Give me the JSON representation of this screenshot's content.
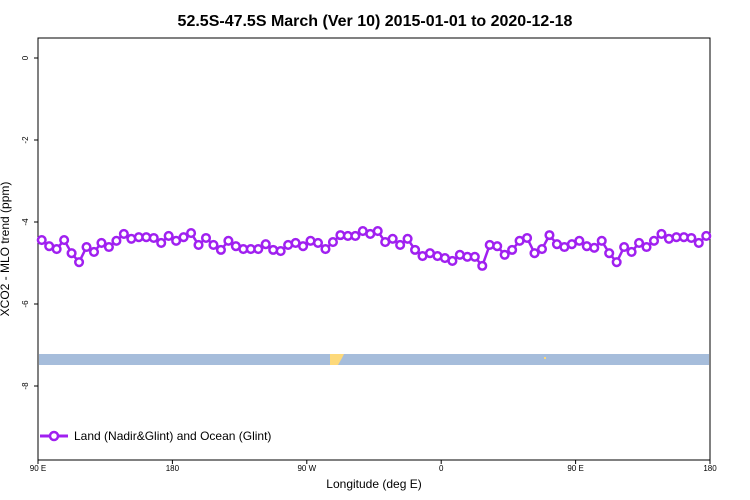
{
  "chart_data": {
    "type": "line",
    "title": "52.5S-47.5S March (Ver 10)   2015-01-01 to 2020-12-18",
    "xlabel": "Longitude (deg E)",
    "ylabel": "XCO2 - MLO trend (ppm)",
    "xlim": [
      90,
      540
    ],
    "ylim": [
      -9.8,
      0.5
    ],
    "x_ticks": [
      {
        "value": 90,
        "label": "90 E"
      },
      {
        "value": 180,
        "label": "180"
      },
      {
        "value": 270,
        "label": "90 W"
      },
      {
        "value": 360,
        "label": "0"
      },
      {
        "value": 450,
        "label": "90 E"
      },
      {
        "value": 540,
        "label": "180"
      }
    ],
    "y_ticks": [
      {
        "value": 0,
        "label": "0"
      },
      {
        "value": -2,
        "label": "-2"
      },
      {
        "value": -4,
        "label": "-4"
      },
      {
        "value": -6,
        "label": "-6"
      },
      {
        "value": -8,
        "label": "-8"
      }
    ],
    "grid": false,
    "legend_position": "bottom-left",
    "series": [
      {
        "name": "Land (Nadir&Glint) and Ocean (Glint)",
        "color": "#a020f0",
        "x_start": 92.5,
        "x_step": 5,
        "values": [
          -4.44,
          -4.59,
          -4.66,
          -4.44,
          -4.76,
          -4.98,
          -4.61,
          -4.73,
          -4.51,
          -4.61,
          -4.46,
          -4.29,
          -4.41,
          -4.37,
          -4.37,
          -4.39,
          -4.51,
          -4.34,
          -4.46,
          -4.37,
          -4.27,
          -4.56,
          -4.39,
          -4.56,
          -4.68,
          -4.46,
          -4.59,
          -4.66,
          -4.66,
          -4.66,
          -4.54,
          -4.68,
          -4.71,
          -4.56,
          -4.51,
          -4.59,
          -4.46,
          -4.51,
          -4.66,
          -4.49,
          -4.32,
          -4.34,
          -4.34,
          -4.22,
          -4.29,
          -4.22,
          -4.49,
          -4.41,
          -4.56,
          -4.41,
          -4.68,
          -4.83,
          -4.76,
          -4.83,
          -4.88,
          -4.95,
          -4.8,
          -4.85,
          -4.85,
          -5.07,
          -4.56,
          -4.59,
          -4.8,
          -4.68,
          -4.46,
          -4.39,
          -4.76,
          -4.66,
          -4.32,
          -4.54,
          -4.61,
          -4.54,
          -4.46,
          -4.59,
          -4.63,
          -4.46,
          -4.76,
          -4.98,
          -4.61,
          -4.73,
          -4.51,
          -4.61,
          -4.46,
          -4.29,
          -4.41,
          -4.37,
          -4.37,
          -4.39,
          -4.51,
          -4.34
        ]
      }
    ],
    "surface_strip": {
      "y_value": -7.25,
      "ocean_color": "#a6bddb",
      "land_color": "#fdd97a"
    }
  }
}
